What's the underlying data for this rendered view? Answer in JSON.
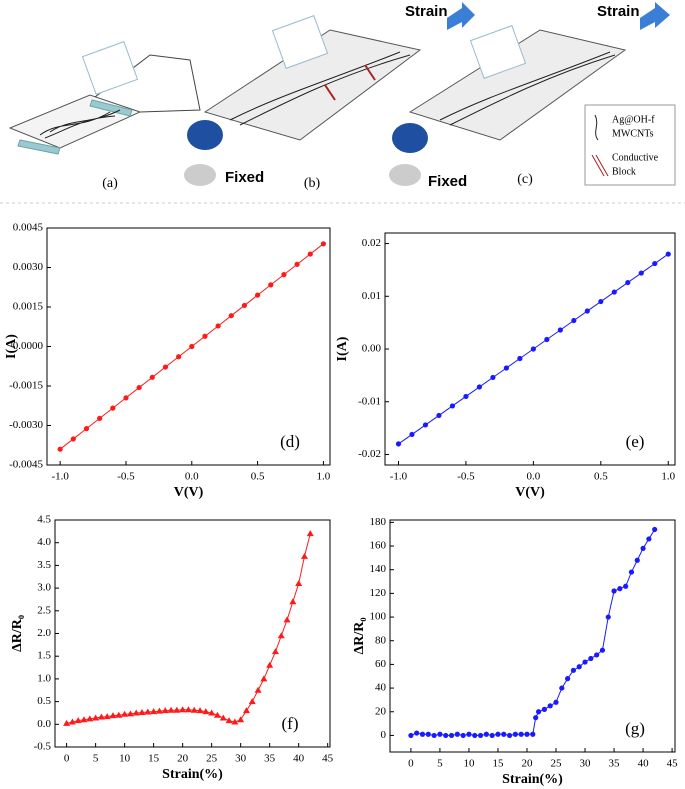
{
  "schematic": {
    "panels": [
      "(a)",
      "(b)",
      "(c)"
    ],
    "strain": [
      "Strain",
      "Strain"
    ],
    "fixed": [
      "Fixed",
      "Fixed"
    ],
    "legend": [
      [
        "Ag@OH-f",
        "MWCNTs"
      ],
      [
        "Conductive",
        "Block"
      ]
    ]
  },
  "chart_data": [
    {
      "type": "line",
      "marker": "circle",
      "color": "#ff1a1a",
      "annotation": "(d)",
      "x_label": "V(V)",
      "y_label": "I(A)",
      "x": [
        -1.0,
        -0.9,
        -0.8,
        -0.7,
        -0.6,
        -0.5,
        -0.4,
        -0.3,
        -0.2,
        -0.1,
        0.0,
        0.1,
        0.2,
        0.3,
        0.4,
        0.5,
        0.6,
        0.7,
        0.8,
        0.9,
        1.0
      ],
      "values": [
        -0.0039,
        -0.00351,
        -0.00312,
        -0.00273,
        -0.00234,
        -0.00195,
        -0.00156,
        -0.00117,
        -0.00078,
        -0.00039,
        0,
        0.00039,
        0.00078,
        0.00117,
        0.00156,
        0.00195,
        0.00234,
        0.00273,
        0.00312,
        0.00351,
        0.0039
      ],
      "xlim": [
        -1.1,
        1.05
      ],
      "xticks": [
        {
          "value": -1,
          "label": "-1.0"
        },
        -0.5,
        {
          "value": 0,
          "label": "0.0"
        },
        0.5,
        {
          "value": 1,
          "label": "1.0"
        }
      ],
      "ylim": [
        -0.0045,
        0.0045
      ],
      "yticks": [
        -0.0045,
        {
          "value": -0.003,
          "label": "-0.0030"
        },
        -0.0015,
        {
          "value": 0,
          "label": "0.0000"
        },
        0.0015,
        {
          "value": 0.003,
          "label": "0.0030"
        },
        0.0045
      ]
    },
    {
      "type": "line",
      "marker": "circle",
      "color": "#1a1aff",
      "annotation": "(e)",
      "x_label": "V(V)",
      "y_label": "I(A)",
      "x": [
        -1.0,
        -0.9,
        -0.8,
        -0.7,
        -0.6,
        -0.5,
        -0.4,
        -0.3,
        -0.2,
        -0.1,
        0.0,
        0.1,
        0.2,
        0.3,
        0.4,
        0.5,
        0.6,
        0.7,
        0.8,
        0.9,
        1.0
      ],
      "values": [
        -0.018,
        -0.0162,
        -0.0144,
        -0.0126,
        -0.0108,
        -0.009,
        -0.0072,
        -0.0054,
        -0.0036,
        -0.0018,
        0,
        0.0018,
        0.0036,
        0.0054,
        0.0072,
        0.009,
        0.0108,
        0.0126,
        0.0144,
        0.0162,
        0.018
      ],
      "xlim": [
        -1.1,
        1.05
      ],
      "xticks": [
        {
          "value": -1,
          "label": "-1.0"
        },
        -0.5,
        {
          "value": 0,
          "label": "0.0"
        },
        0.5,
        {
          "value": 1,
          "label": "1.0"
        }
      ],
      "ylim": [
        -0.022,
        0.022
      ],
      "yticks": [
        -0.02,
        -0.01,
        {
          "value": 0,
          "label": "0.00"
        },
        0.01,
        0.02
      ]
    },
    {
      "type": "line",
      "marker": "triangle",
      "color": "#ff1a1a",
      "annotation": "(f)",
      "x_label": "Strain(%)",
      "y_label": "ΔR/R₀",
      "x": [
        0,
        1,
        2,
        3,
        4,
        5,
        6,
        7,
        8,
        9,
        10,
        11,
        12,
        13,
        14,
        15,
        16,
        17,
        18,
        19,
        20,
        21,
        22,
        23,
        24,
        25,
        26,
        27,
        28,
        29,
        30,
        31,
        32,
        33,
        34,
        35,
        36,
        37,
        38,
        39,
        40,
        41,
        42
      ],
      "values": [
        0.02,
        0.05,
        0.08,
        0.1,
        0.12,
        0.14,
        0.16,
        0.17,
        0.19,
        0.2,
        0.22,
        0.23,
        0.25,
        0.26,
        0.27,
        0.28,
        0.29,
        0.3,
        0.31,
        0.31,
        0.32,
        0.32,
        0.31,
        0.3,
        0.28,
        0.25,
        0.2,
        0.14,
        0.08,
        0.05,
        0.1,
        0.3,
        0.5,
        0.75,
        1.0,
        1.3,
        1.6,
        1.95,
        2.3,
        2.7,
        3.1,
        3.7,
        4.2
      ],
      "xlim": [
        -2,
        45.4
      ],
      "xticks": [
        0,
        5,
        10,
        15,
        20,
        25,
        30,
        35,
        40,
        45
      ],
      "ylim": [
        -0.5,
        4.5
      ],
      "yticks": [
        -0.5,
        {
          "value": 0,
          "label": "0.0"
        },
        0.5,
        {
          "value": 1,
          "label": "1.0"
        },
        1.5,
        {
          "value": 2,
          "label": "2.0"
        },
        2.5,
        {
          "value": 3,
          "label": "3.0"
        },
        3.5,
        {
          "value": 4,
          "label": "4.0"
        },
        4.5
      ]
    },
    {
      "type": "line",
      "marker": "circle",
      "color": "#1a1aff",
      "annotation": "(g)",
      "x_label": "Strain(%)",
      "y_label": "ΔR/R₀",
      "x": [
        0,
        1,
        2,
        3,
        4,
        5,
        6,
        7,
        8,
        9,
        10,
        11,
        12,
        13,
        14,
        15,
        16,
        17,
        18,
        19,
        20,
        21,
        21.5,
        22,
        23,
        24,
        25,
        26,
        27,
        28,
        29,
        30,
        31,
        32,
        33,
        34,
        35,
        36,
        37,
        38,
        39,
        40,
        41,
        42
      ],
      "values": [
        0,
        2,
        1,
        1,
        0,
        1,
        0,
        0,
        1,
        0,
        1,
        0,
        0,
        1,
        0,
        1,
        1,
        0,
        1,
        1,
        1,
        1,
        15,
        20,
        22,
        25,
        28,
        40,
        48,
        55,
        58,
        62,
        65,
        68,
        72,
        100,
        122,
        124,
        126,
        138,
        148,
        158,
        166,
        174
      ],
      "xlim": [
        -3.6,
        45.5
      ],
      "xticks": [
        0,
        5,
        10,
        15,
        20,
        25,
        30,
        35,
        40,
        45
      ],
      "ylim": [
        -14,
        182
      ],
      "yticks": [
        0,
        20,
        40,
        60,
        80,
        100,
        120,
        140,
        160,
        180
      ]
    }
  ]
}
